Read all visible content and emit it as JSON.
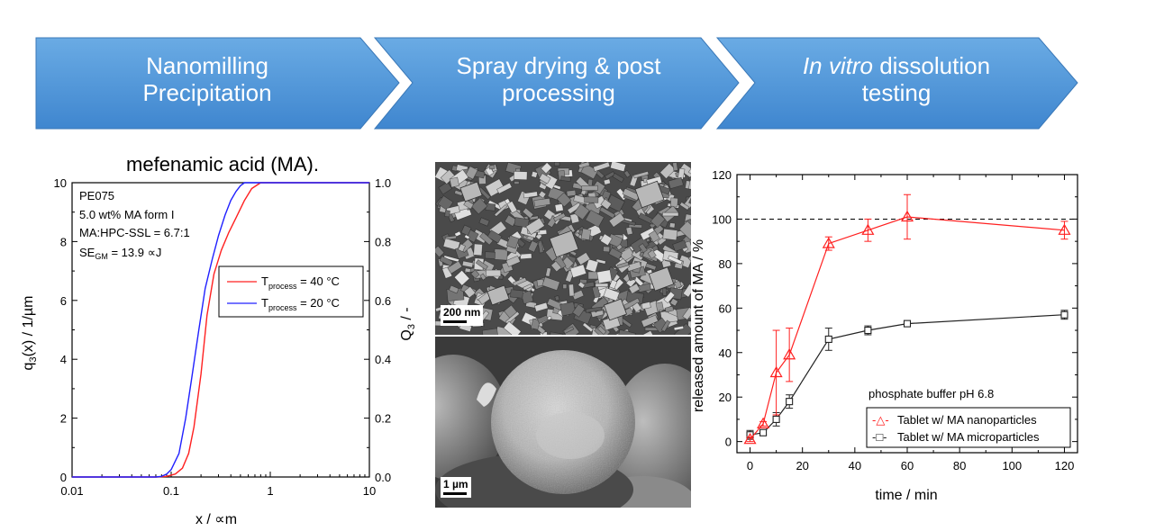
{
  "process_steps": [
    {
      "line1": "Nanomilling",
      "line2": "Precipitation",
      "italic_prefix": ""
    },
    {
      "line1": "Spray drying & post",
      "line2": "processing",
      "italic_prefix": ""
    },
    {
      "line1": " dissolution",
      "line2": "testing",
      "italic_prefix": "In vitro"
    }
  ],
  "colors": {
    "arrow_fill_top": "#6aabe4",
    "arrow_fill_bottom": "#3f86cf",
    "arrow_stroke": "#3a78b8",
    "red_series": "#ff2020",
    "blue_series": "#2020ff",
    "black_series": "#222222"
  },
  "micrographs": [
    {
      "scale_label": "200 nm"
    },
    {
      "scale_label": "1 µm"
    }
  ],
  "chart_data": [
    {
      "type": "line",
      "title": "mefenamic acid (MA).",
      "xlabel": "x / ∝m",
      "ylabel_left": "q",
      "ylabel_left_sub": "3",
      "ylabel_left_rest": "(x) / 1/µm",
      "ylabel_right": "Q",
      "ylabel_right_sub": "3",
      "ylabel_right_rest": " / -",
      "x_scale": "log",
      "xlim": [
        0.01,
        10
      ],
      "ylim_left": [
        0,
        10
      ],
      "ylim_right": [
        0.0,
        1.0
      ],
      "x_ticks": [
        0.01,
        0.1,
        1,
        10
      ],
      "x_tick_labels": [
        "0.01",
        "0.1",
        "1",
        "10"
      ],
      "y_left_ticks": [
        "0",
        "2",
        "4",
        "6",
        "8",
        "10"
      ],
      "y_right_ticks": [
        "0.0",
        "0.2",
        "0.4",
        "0.6",
        "0.8",
        "1.0"
      ],
      "annotation_lines": [
        "PE075",
        "5.0 wt% MA form I",
        "MA:HPC-SSL = 6.7:1"
      ],
      "annotation_se_main": "SE",
      "annotation_se_sub": "GM",
      "annotation_se_rest": " = 13.9 ∝J",
      "legend_position": "right",
      "series": [
        {
          "name_main": "T",
          "name_sub": "process",
          "name_rest": " = 40 °C",
          "color": "#ff2020",
          "x": [
            0.01,
            0.07,
            0.09,
            0.11,
            0.13,
            0.15,
            0.17,
            0.2,
            0.23,
            0.27,
            0.32,
            0.38,
            0.45,
            0.55,
            0.65,
            0.8,
            1,
            10
          ],
          "y": [
            0.0,
            0.0,
            0.002,
            0.01,
            0.03,
            0.08,
            0.17,
            0.35,
            0.55,
            0.69,
            0.77,
            0.83,
            0.88,
            0.94,
            0.98,
            1.0,
            1.0,
            1.0
          ]
        },
        {
          "name_main": "T",
          "name_sub": "process",
          "name_rest": " = 20 °C",
          "color": "#2020ff",
          "x": [
            0.01,
            0.07,
            0.08,
            0.09,
            0.1,
            0.12,
            0.14,
            0.16,
            0.19,
            0.22,
            0.26,
            0.3,
            0.35,
            0.4,
            0.45,
            0.5,
            0.55,
            0.6,
            10
          ],
          "y": [
            0.0,
            0.0,
            0.002,
            0.01,
            0.025,
            0.08,
            0.2,
            0.33,
            0.5,
            0.64,
            0.74,
            0.82,
            0.89,
            0.94,
            0.97,
            0.99,
            1.0,
            1.0,
            1.0
          ]
        }
      ]
    },
    {
      "type": "line",
      "xlabel": "time / min",
      "ylabel": "released amount of MA / %",
      "xlim": [
        -5,
        125
      ],
      "ylim": [
        -5,
        120
      ],
      "x_ticks": [
        "0",
        "20",
        "40",
        "60",
        "80",
        "100",
        "120"
      ],
      "y_ticks": [
        "0",
        "20",
        "40",
        "60",
        "80",
        "100",
        "120"
      ],
      "reference_line": 100,
      "annotation": "phosphate buffer pH 6.8",
      "legend_position": "bottom-right",
      "series": [
        {
          "name": "Tablet w/ MA nanoparticles",
          "legend_mark": "-△-",
          "color": "#ff2020",
          "marker": "triangle",
          "x": [
            0,
            5,
            10,
            15,
            30,
            45,
            60,
            120
          ],
          "y": [
            1,
            8,
            31,
            39,
            89,
            95,
            101,
            95
          ],
          "err": [
            1,
            1,
            19,
            12,
            3,
            5,
            10,
            4
          ]
        },
        {
          "name": "Tablet w/ MA microparticles",
          "legend_mark": "-□-",
          "color": "#222222",
          "marker": "square",
          "x": [
            0,
            5,
            10,
            15,
            30,
            45,
            60,
            120
          ],
          "y": [
            3,
            4,
            10,
            18,
            46,
            50,
            53,
            57
          ],
          "err": [
            2,
            1,
            3,
            3,
            5,
            2,
            1,
            2
          ]
        }
      ]
    }
  ]
}
